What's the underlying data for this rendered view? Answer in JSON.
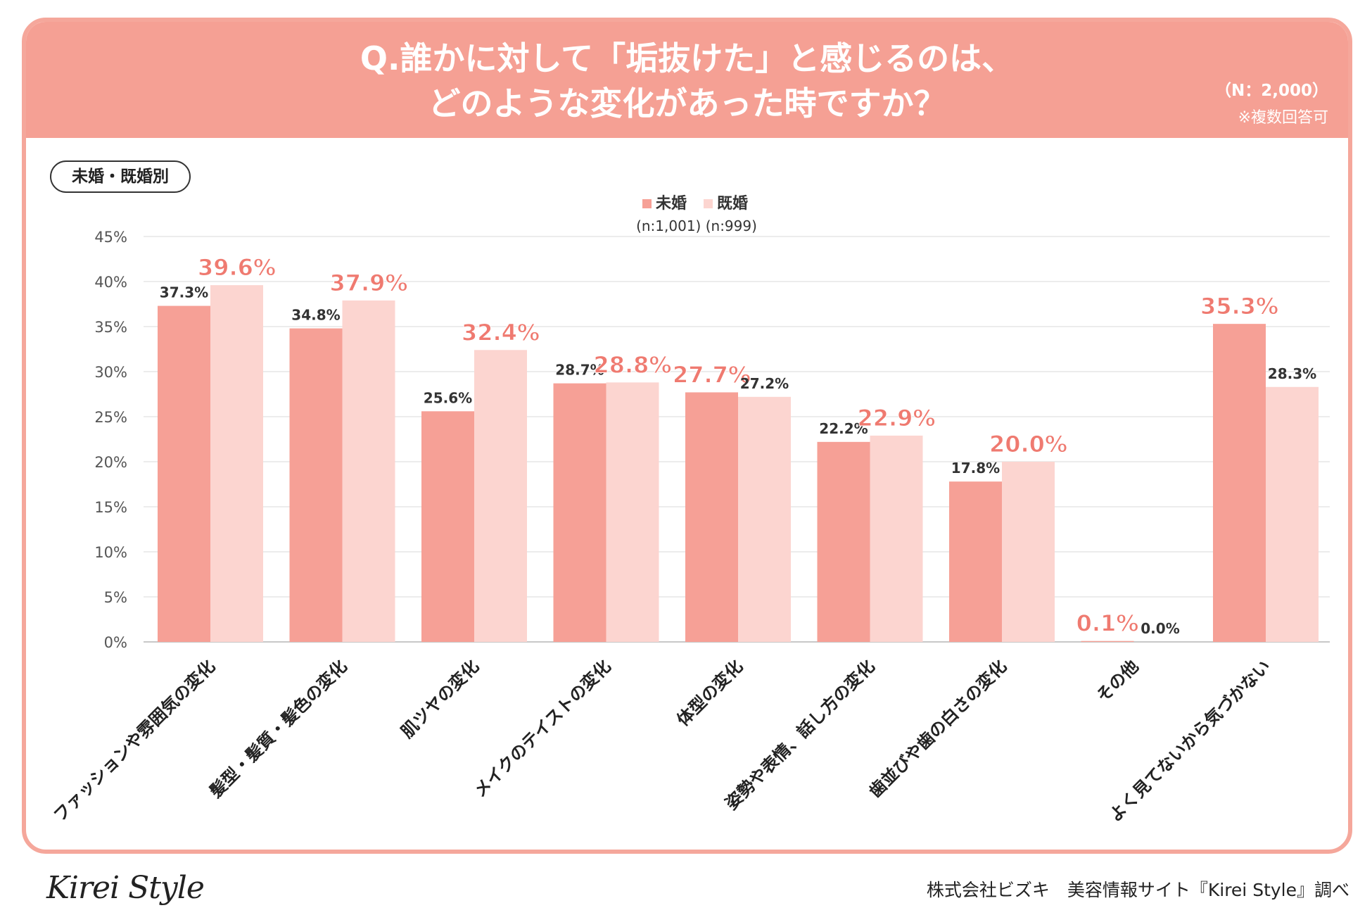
{
  "header": {
    "title_line1": "Q.誰かに対して「垢抜けた」と感じるのは、",
    "title_line2": "どのような変化があった時ですか？",
    "sample_size": "（N：2,000）",
    "note": "※複数回答可"
  },
  "segment_label": "未婚・既婚別",
  "chart_data": {
    "type": "bar",
    "legend": {
      "position": "top-center",
      "sample_sizes": "(n:1,001) (n:999)"
    },
    "y_axis": {
      "min": 0,
      "max": 45,
      "step": 5,
      "tick_labels": [
        "0%",
        "5%",
        "10%",
        "15%",
        "20%",
        "25%",
        "30%",
        "35%",
        "40%",
        "45%"
      ]
    },
    "grid": true,
    "categories": [
      "ファッションや雰囲気の変化",
      "髪型・髪質・髪色の変化",
      "肌ツヤの変化",
      "メイクのテイストの変化",
      "体型の変化",
      "姿勢や表情、話し方の変化",
      "歯並びや歯の白さの変化",
      "その他",
      "よく見てないから気づかない"
    ],
    "series": [
      {
        "name": "未婚",
        "color": "#f6a096",
        "values": [
          37.3,
          34.8,
          25.6,
          28.7,
          27.7,
          22.2,
          17.8,
          0.1,
          35.3
        ],
        "labels": [
          "37.3%",
          "34.8%",
          "25.6%",
          "28.7%",
          "27.7%",
          "22.2%",
          "17.8%",
          "0.1%",
          "35.3%"
        ]
      },
      {
        "name": "既婚",
        "color": "#fcd5d0",
        "values": [
          39.6,
          37.9,
          32.4,
          28.8,
          27.2,
          22.9,
          20.0,
          0.0,
          28.3
        ],
        "labels": [
          "39.6%",
          "37.9%",
          "32.4%",
          "28.8%",
          "27.2%",
          "22.9%",
          "20.0%",
          "0.0%",
          "28.3%"
        ]
      }
    ],
    "highlight_color": "#ef7a70"
  },
  "footer": {
    "logo": "Kirei Style",
    "credit": "株式会社ビズキ　美容情報サイト『Kirei Style』調べ"
  }
}
